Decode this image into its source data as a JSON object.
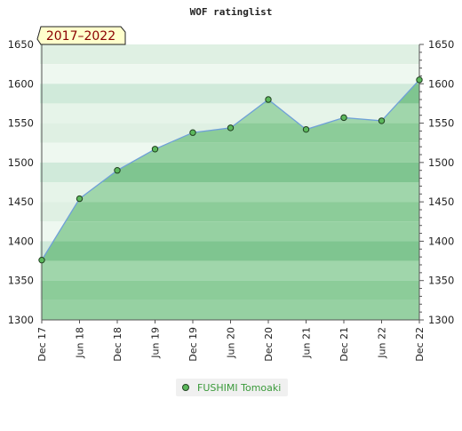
{
  "chart_data": {
    "type": "area",
    "title": "WOF ratinglist",
    "period_label": "2017–2022",
    "x": [
      "Dec 17",
      "Jun 18",
      "Dec 18",
      "Jun 19",
      "Dec 19",
      "Jun 20",
      "Dec 20",
      "Jun 21",
      "Dec 21",
      "Jun 22",
      "Dec 22"
    ],
    "series": [
      {
        "name": "FUSHIMI Tomoaki",
        "values": [
          1376,
          1454,
          1490,
          1517,
          1538,
          1544,
          1580,
          1542,
          1557,
          1553,
          1605
        ]
      }
    ],
    "yticks": [
      1300,
      1350,
      1400,
      1450,
      1500,
      1550,
      1600,
      1650
    ],
    "ylim": [
      1300,
      1650
    ],
    "grid": true,
    "legend_position": "bottom-center",
    "colors": {
      "line": "#6fa0d8",
      "fill": "#5cb85c",
      "marker": "#3e8e3e"
    }
  }
}
